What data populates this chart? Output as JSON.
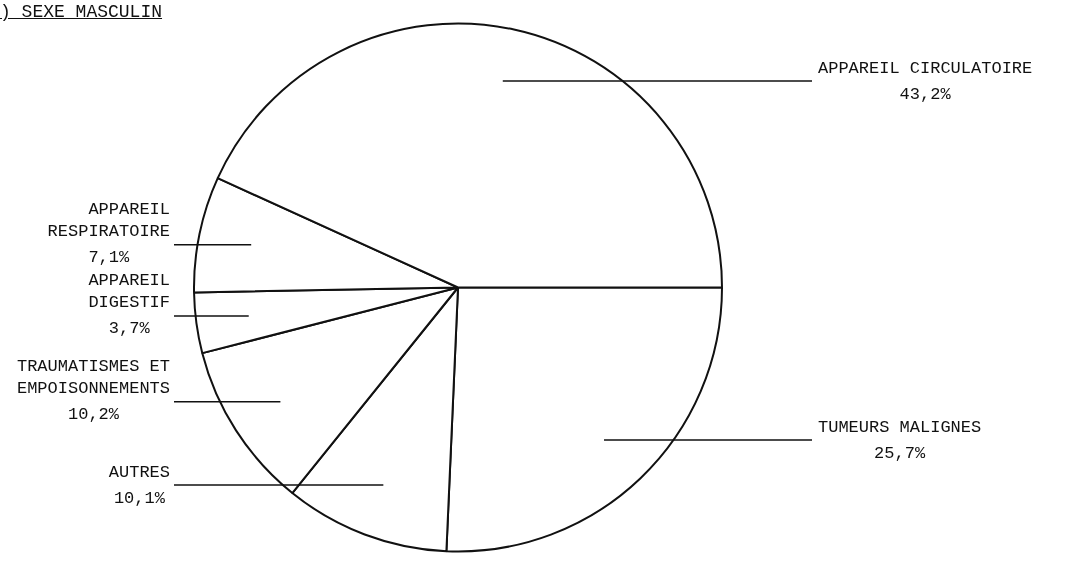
{
  "chart_data": {
    "type": "pie",
    "title": ") SEXE MASCULIN",
    "categories": [
      "TUMEURS MALIGNES",
      "AUTRES",
      "TRAUMATISMES ET EMPOISONNEMENTS",
      "APPAREIL DIGESTIF",
      "APPAREIL RESPIRATOIRE",
      "APPAREIL CIRCULATOIRE"
    ],
    "values": [
      25.7,
      10.1,
      10.2,
      3.7,
      7.1,
      43.2
    ],
    "value_labels": [
      "25,7%",
      "10,1%",
      "10,2%",
      "3,7%",
      "7,1%",
      "43,2%"
    ],
    "colors": [
      "#ffffff",
      "#ffffff",
      "#ffffff",
      "#ffffff",
      "#ffffff",
      "#ffffff"
    ],
    "legend": false
  }
}
